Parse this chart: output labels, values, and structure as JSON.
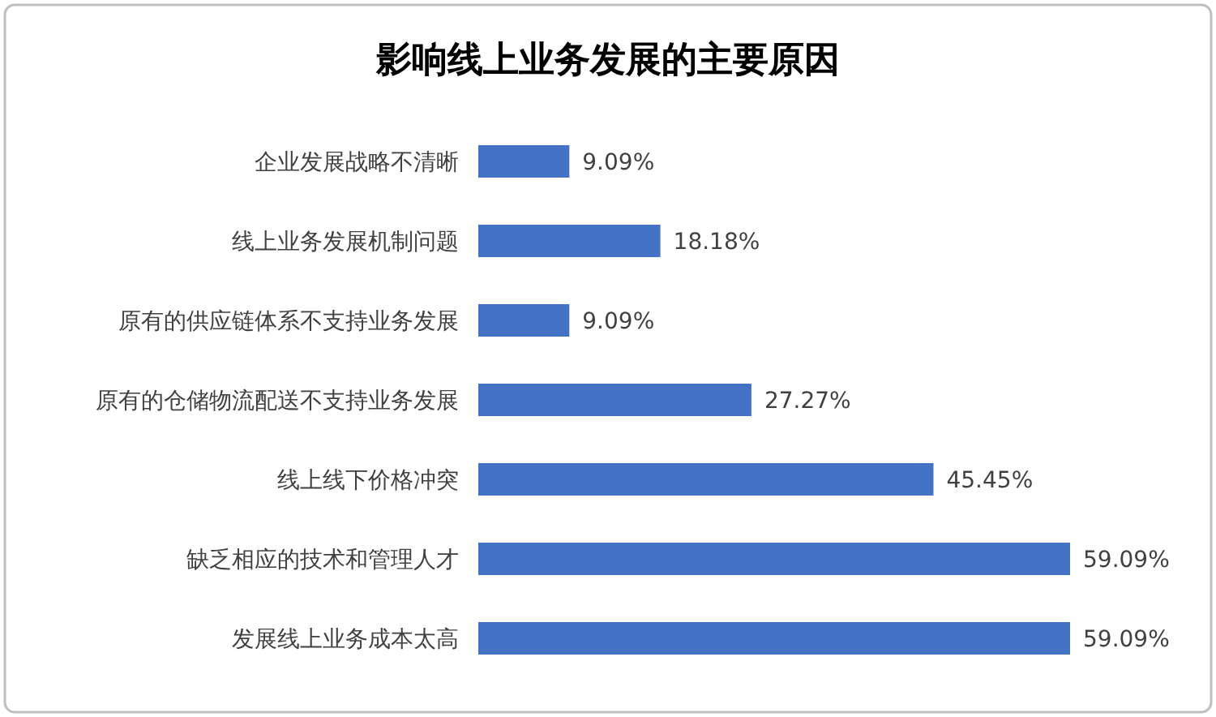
{
  "chart_data": {
    "type": "bar",
    "orientation": "horizontal",
    "title": "影响线上业务发展的主要原因",
    "categories": [
      "企业发展战略不清晰",
      "线上业务发展机制问题",
      "原有的供应链体系不支持业务发展",
      "原有的仓储物流配送不支持业务发展",
      "线上线下价格冲突",
      "缺乏相应的技术和管理人才",
      "发展线上业务成本太高"
    ],
    "values": [
      9.09,
      18.18,
      9.09,
      27.27,
      45.45,
      59.09,
      59.09
    ],
    "value_labels": [
      "9.09%",
      "18.18%",
      "9.09%",
      "27.27%",
      "45.45%",
      "59.09%",
      "59.09%"
    ],
    "color": "#4472c4"
  }
}
